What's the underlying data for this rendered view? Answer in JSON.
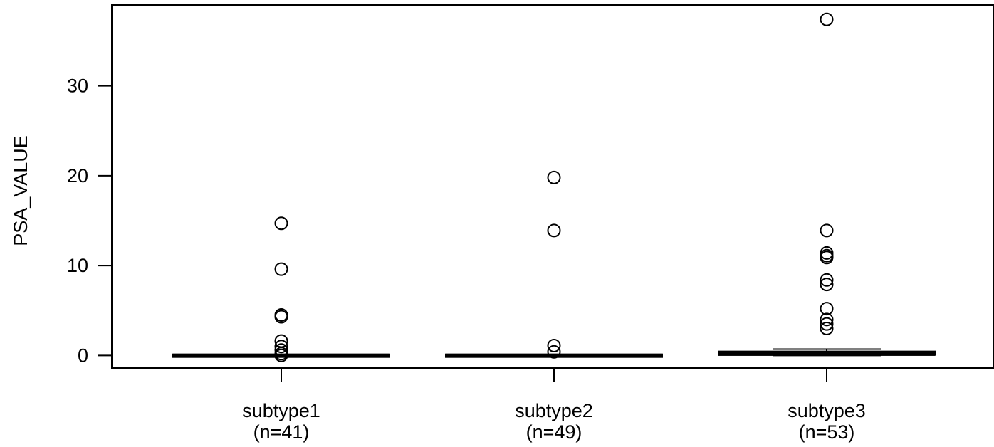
{
  "chart_data": {
    "type": "boxplot",
    "ylabel": "PSA_VALUE",
    "xlabel": "",
    "ylim": [
      -1.4,
      39
    ],
    "y_ticks": [
      0,
      10,
      20,
      30
    ],
    "categories": [
      {
        "label": "subtype1",
        "n_label": "(n=41)"
      },
      {
        "label": "subtype2",
        "n_label": "(n=49)"
      },
      {
        "label": "subtype3",
        "n_label": "(n=53)"
      }
    ],
    "boxes": [
      {
        "category": "subtype1",
        "whisker_low": 0,
        "q1": 0,
        "median": 0,
        "q3": 0.05,
        "whisker_high": 0.1,
        "outliers": [
          14.7,
          9.6,
          4.5,
          4.3,
          1.6,
          1.0,
          0.6,
          0.2,
          0.0
        ]
      },
      {
        "category": "subtype2",
        "whisker_low": 0,
        "q1": 0,
        "median": 0,
        "q3": 0.05,
        "whisker_high": 0.1,
        "outliers": [
          19.8,
          13.9,
          1.1,
          0.4
        ]
      },
      {
        "category": "subtype3",
        "whisker_low": 0,
        "q1": 0.05,
        "median": 0.15,
        "q3": 0.45,
        "whisker_high": 0.7,
        "outliers": [
          37.4,
          13.9,
          11.4,
          11.1,
          10.9,
          8.4,
          7.9,
          5.2,
          4.0,
          3.5,
          3.0
        ]
      }
    ]
  }
}
